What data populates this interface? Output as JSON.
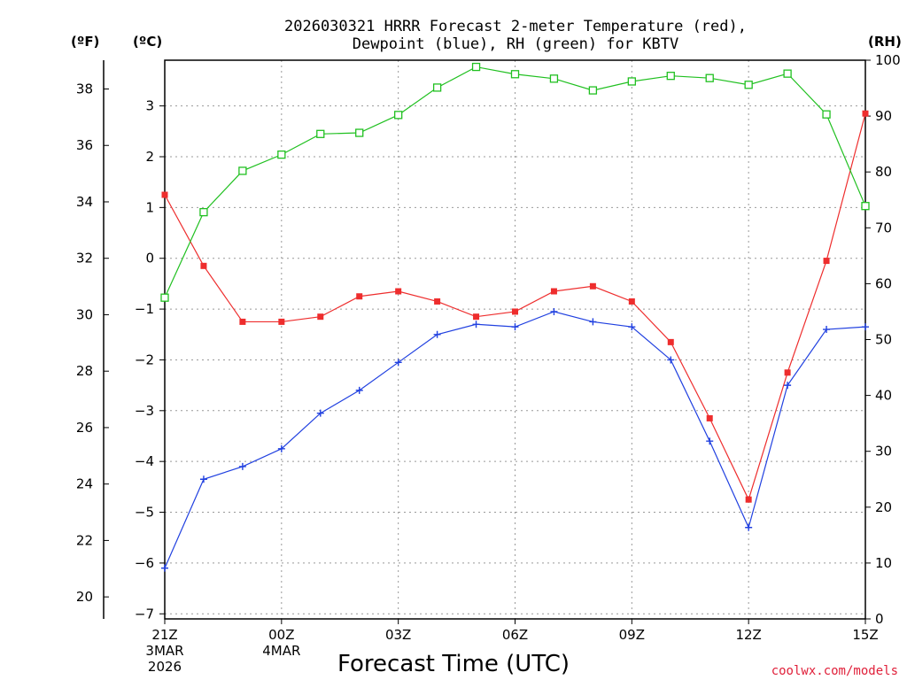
{
  "chart_data": {
    "type": "line",
    "title_line1": "2026030321 HRRR Forecast 2-meter Temperature (red),",
    "title_line2": "Dewpoint (blue), RH (green) for KBTV",
    "left_unit_f": "(ºF)",
    "left_unit_c": "(ºC)",
    "right_unit": "(RH)",
    "xlabel": "Forecast Time (UTC)",
    "credit": "coolwx.com/models",
    "x_hours": [
      0,
      1,
      2,
      3,
      4,
      5,
      6,
      7,
      8,
      9,
      10,
      11,
      12,
      13,
      14,
      15,
      16,
      17,
      18
    ],
    "x_ticks": [
      {
        "hour": 0,
        "label": "21Z",
        "sub1": "3MAR",
        "sub2": "2026"
      },
      {
        "hour": 3,
        "label": "00Z",
        "sub1": "4MAR",
        "sub2": ""
      },
      {
        "hour": 6,
        "label": "03Z",
        "sub1": "",
        "sub2": ""
      },
      {
        "hour": 9,
        "label": "06Z",
        "sub1": "",
        "sub2": ""
      },
      {
        "hour": 12,
        "label": "09Z",
        "sub1": "",
        "sub2": ""
      },
      {
        "hour": 15,
        "label": "12Z",
        "sub1": "",
        "sub2": ""
      },
      {
        "hour": 18,
        "label": "15Z",
        "sub1": "",
        "sub2": ""
      }
    ],
    "y_celsius_range": [
      -7.1,
      3.9
    ],
    "y_celsius_ticks": [
      "3",
      "2",
      "1",
      "0",
      "−1",
      "−2",
      "−3",
      "−4",
      "−5",
      "−6",
      "−7"
    ],
    "y_fahrenheit_ticks": [
      "38",
      "36",
      "34",
      "32",
      "30",
      "28",
      "26",
      "24",
      "22",
      "20"
    ],
    "y_rh_range": [
      0,
      100
    ],
    "y_rh_ticks": [
      "100",
      "90",
      "80",
      "70",
      "60",
      "50",
      "40",
      "30",
      "20",
      "10",
      "0"
    ],
    "series": [
      {
        "name": "Temperature",
        "unit": "°C",
        "color": "#ee2d2d",
        "marker": "filled-square",
        "values": [
          1.25,
          -0.15,
          -1.25,
          -1.25,
          -1.15,
          -0.75,
          -0.65,
          -0.85,
          -1.15,
          -1.05,
          -0.65,
          -0.55,
          -0.85,
          -1.65,
          -3.15,
          -4.75,
          -2.25,
          -0.05,
          2.85
        ]
      },
      {
        "name": "Dewpoint",
        "unit": "°C",
        "color": "#2040e0",
        "marker": "plus",
        "values": [
          -6.1,
          -4.35,
          -4.1,
          -3.75,
          -3.05,
          -2.6,
          -2.05,
          -1.5,
          -1.3,
          -1.35,
          -1.05,
          -1.25,
          -1.35,
          -2.0,
          -3.6,
          -5.3,
          -2.5,
          -1.4,
          -1.35
        ]
      },
      {
        "name": "RH",
        "unit": "%",
        "color": "#20c020",
        "marker": "open-square",
        "values": [
          57.5,
          72.8,
          80.2,
          83.1,
          86.8,
          87.0,
          90.2,
          95.1,
          98.8,
          97.5,
          96.7,
          94.6,
          96.2,
          97.2,
          96.8,
          95.6,
          97.6,
          90.3,
          73.9
        ]
      }
    ]
  }
}
